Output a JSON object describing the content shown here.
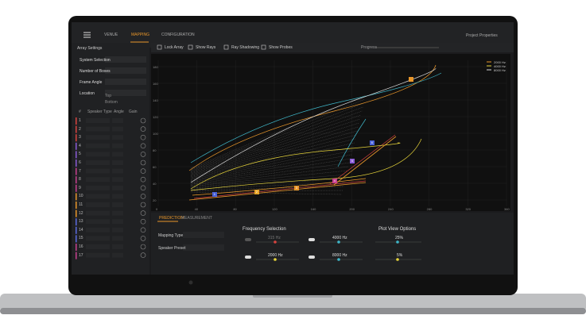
{
  "nav": {
    "tabs": [
      "VENUE",
      "MAPPING",
      "CONFIGURATION"
    ],
    "project": "Project Properties"
  },
  "left_panel": {
    "title": "Array Settings",
    "fields": [
      "System Selection",
      "Number of Boxes",
      "Frame Angle",
      "Location"
    ],
    "location_labels": [
      "Top",
      "Bottom"
    ],
    "columns": [
      "#",
      "Speaker Type",
      "Angle",
      "Gain"
    ],
    "rows": [
      "1",
      "2",
      "3",
      "4",
      "5",
      "6",
      "7",
      "8",
      "9",
      "10",
      "11",
      "12",
      "13",
      "14",
      "15",
      "16",
      "17"
    ]
  },
  "toolbar": {
    "toggles": [
      "Lock Array",
      "Show Rays",
      "Ray Shadowing",
      "Show Probes"
    ],
    "progress": "Progress"
  },
  "legend": [
    {
      "name": "2000 Hz",
      "color": "#e8962a"
    },
    {
      "name": "4000 Hz",
      "color": "#e6d43a"
    },
    {
      "name": "8000 Hz",
      "color": "#d9d9d9"
    }
  ],
  "plot": {
    "xticks": [
      "0",
      "40",
      "80",
      "120",
      "160",
      "200",
      "240",
      "280",
      "320",
      "360"
    ],
    "yticks": [
      "180",
      "160",
      "140",
      "120",
      "100",
      "80",
      "60",
      "40",
      "20"
    ],
    "probes": [
      "1",
      "2",
      "3",
      "4",
      "5",
      "6"
    ]
  },
  "bottom_panel": {
    "tabs": [
      "PREDICTION",
      "MEASUREMENT"
    ],
    "fields": [
      "Mapping Type",
      "Speaker Preset"
    ],
    "frequency_title": "Frequency Selection",
    "frequencies": [
      "315 Hz",
      "4000 Hz",
      "2000 Hz",
      "8000 Hz"
    ],
    "view_title": "Plot View Options",
    "view_values": [
      "25%",
      "5%"
    ]
  }
}
